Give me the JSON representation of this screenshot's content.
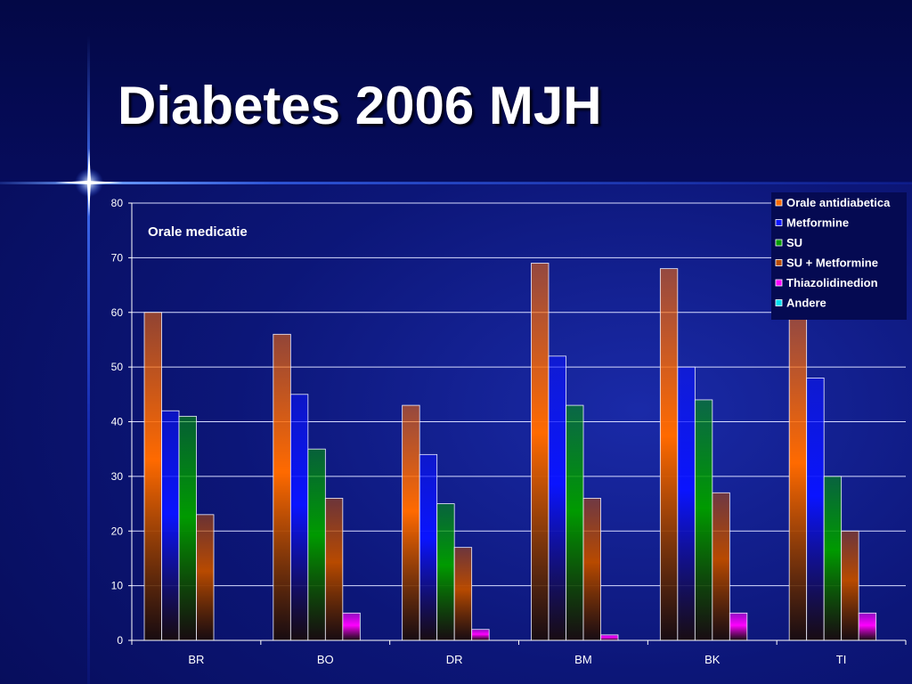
{
  "slide": {
    "title": "Diabetes 2006 MJH"
  },
  "chart_data": {
    "type": "bar",
    "title": "Orale medicatie",
    "categories": [
      "BR",
      "BO",
      "DR",
      "BM",
      "BK",
      "TI"
    ],
    "ylim": [
      0,
      80
    ],
    "yticks": [
      0,
      10,
      20,
      30,
      40,
      50,
      60,
      70,
      80
    ],
    "grid": true,
    "legend_position": "top-right",
    "series": [
      {
        "name": "Orale antidiabetica",
        "color": "#ff6a00",
        "values": [
          60,
          56,
          43,
          69,
          68,
          59
        ]
      },
      {
        "name": "Metformine",
        "color": "#0a14ff",
        "values": [
          42,
          45,
          34,
          52,
          50,
          48
        ]
      },
      {
        "name": "SU",
        "color": "#009a00",
        "values": [
          41,
          35,
          25,
          43,
          44,
          30
        ]
      },
      {
        "name": "SU + Metformine",
        "color": "#b84a00",
        "values": [
          23,
          26,
          17,
          26,
          27,
          20
        ]
      },
      {
        "name": "Thiazolidinedion",
        "color": "#ff00ff",
        "values": [
          0,
          5,
          2,
          1,
          5,
          5
        ]
      },
      {
        "name": "Andere",
        "color": "#00e0f0",
        "values": [
          0,
          0,
          0,
          0,
          0,
          0
        ]
      }
    ]
  }
}
